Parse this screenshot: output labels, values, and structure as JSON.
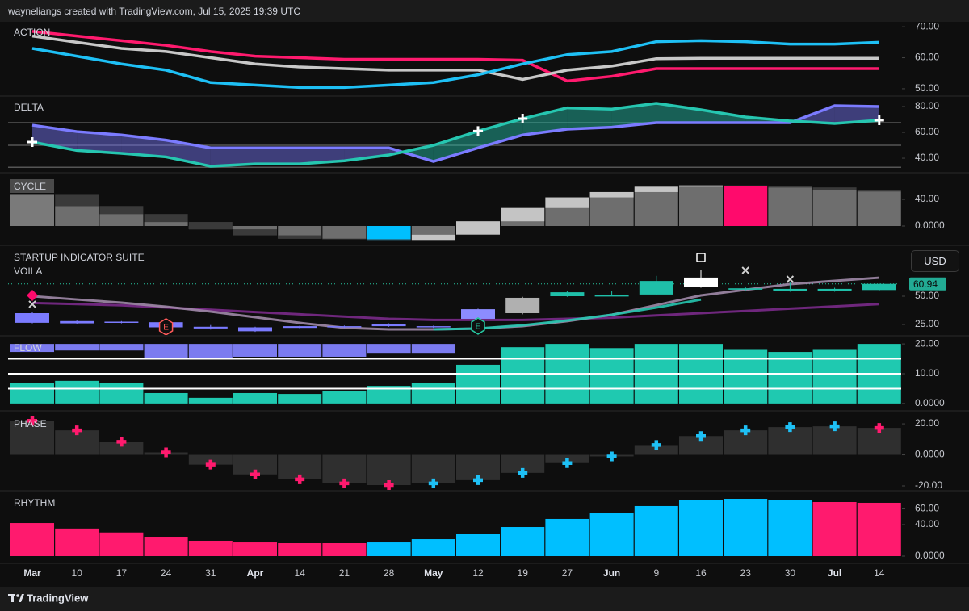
{
  "header": {
    "caption": "wayneliangs created with TradingView.com, Jul 15, 2025 19:39 UTC"
  },
  "footer": {
    "brand": "TradingView"
  },
  "chart_data": [
    {
      "type": "line",
      "title": "ACTION",
      "ylim": [
        47.9,
        71.6
      ],
      "yticks": [
        {
          "value": 70,
          "label": "70.00"
        },
        {
          "value": 60,
          "label": "60.00"
        },
        {
          "value": 50,
          "label": "50.00"
        }
      ],
      "series": [
        {
          "color": "#ff1a6e",
          "values": [
            68.5,
            67,
            65.5,
            64,
            62,
            60.5,
            60,
            59.5,
            59.5,
            59.5,
            59.5,
            59.2,
            52.5,
            54,
            56.5,
            56.5,
            56.5,
            56.5,
            56.5,
            56.5
          ]
        },
        {
          "color": "#c8c8c8",
          "values": [
            67,
            65,
            63,
            62,
            60,
            58,
            57,
            56.5,
            56,
            56,
            56,
            53,
            56,
            57.3,
            59.7,
            59.8,
            59.8,
            59.8,
            59.8,
            59.8
          ]
        },
        {
          "color": "#1ec0f5",
          "values": [
            63,
            60.5,
            58,
            56,
            52,
            51.2,
            50.4,
            50.4,
            51.2,
            52,
            54.5,
            58,
            61,
            62,
            65.2,
            65.5,
            65.2,
            64.4,
            64.4,
            65
          ]
        }
      ]
    },
    {
      "type": "line",
      "title": "DELTA",
      "ylim": [
        29.4,
        87.5
      ],
      "yticks": [
        {
          "value": 80,
          "label": "80.00"
        },
        {
          "value": 60,
          "label": "60.00"
        },
        {
          "value": 40,
          "label": "40.00"
        }
      ],
      "fill": true,
      "levels": [
        67.5,
        50,
        33
      ],
      "signals": [
        0,
        10,
        11,
        19
      ],
      "series": [
        {
          "color": "#7b7bff",
          "values": [
            65.6,
            60.6,
            58,
            54,
            48,
            48,
            48,
            48,
            48,
            37.5,
            48,
            58,
            62.5,
            64,
            67.5,
            67.5,
            67.5,
            67.5,
            80.6,
            80
          ]
        },
        {
          "color": "#26c6b0",
          "values": [
            52.5,
            46,
            43.8,
            41,
            33.8,
            35.6,
            35.6,
            38,
            42.5,
            50,
            61,
            70.6,
            79,
            78,
            82.5,
            77.5,
            71.9,
            68.8,
            66.9,
            69.4
          ]
        }
      ]
    },
    {
      "type": "bar",
      "title": "CYCLE",
      "ylim": [
        -27.9,
        75.2
      ],
      "yticks": [
        {
          "value": 40,
          "label": "40.00"
        },
        {
          "value": 0,
          "label": "0.0000"
        }
      ],
      "show_change": true,
      "series": [
        {
          "values": [
            48,
            30,
            18,
            6,
            -5,
            -14,
            -19,
            -20,
            -21,
            -13,
            7,
            27,
            43,
            51,
            59,
            61,
            60,
            58,
            54,
            52
          ],
          "colors": [
            "#7a7a7a",
            "#6e6e6e",
            "#6e6e6e",
            "#6e6e6e",
            "#6e6e6e",
            "#6e6e6e",
            "#6e6e6e",
            "#6e6e6e",
            "#00bfff",
            "#6e6e6e",
            "#6e6e6e",
            "#6e6e6e",
            "#6e6e6e",
            "#6e6e6e",
            "#6e6e6e",
            "#6e6e6e",
            "#ff0a6c",
            "#6e6e6e",
            "#6e6e6e",
            "#6e6e6e"
          ]
        }
      ]
    },
    {
      "type": "candlestick",
      "title": "STARTUP INDICATOR SUITE",
      "subtitle": "VOILA",
      "currency": "USD",
      "ylim": [
        15.7,
        93.6
      ],
      "yticks": [
        {
          "value": 50,
          "label": "50.00"
        },
        {
          "value": 25,
          "label": "25.00"
        }
      ],
      "lines": [
        {
          "color": "#7a2a8a",
          "values": [
            44,
            43,
            42,
            40,
            38,
            36,
            34,
            32,
            30,
            29,
            29,
            29,
            30,
            31,
            33,
            35,
            37,
            39,
            41,
            43
          ]
        },
        {
          "color": "#a08aa8",
          "values": [
            50,
            47.1,
            44.3,
            40.7,
            36.4,
            31.4,
            26.4,
            22.1,
            20.7,
            20.7,
            21.4,
            23.6,
            27.9,
            33.6,
            42.1,
            50.7,
            55.7,
            60.7,
            63.6,
            66.4
          ]
        },
        {
          "color": "#26c6b0",
          "values": [
            null,
            null,
            null,
            null,
            null,
            null,
            null,
            null,
            null,
            20.7,
            21.4,
            24.3,
            28.6,
            33.6,
            40,
            47,
            null,
            null,
            null,
            null
          ]
        }
      ],
      "candles": {
        "open": [
          35,
          28,
          27.5,
          27,
          23,
          22.5,
          23.5,
          23.5,
          25.5,
          22.5,
          30,
          35,
          50,
          50.5,
          51.5,
          58,
          55.8,
          54.5,
          54.5,
          55.5
        ],
        "high": [
          36,
          28.5,
          28,
          28,
          24.5,
          23,
          24,
          24,
          26,
          24,
          39,
          49.5,
          54.5,
          55,
          68,
          73,
          58,
          62,
          57.5,
          61.5
        ],
        "low": [
          26,
          25.5,
          26,
          21,
          20.5,
          18.5,
          21.5,
          22,
          23,
          22,
          29.5,
          34,
          49.5,
          50,
          51,
          57.5,
          55,
          54,
          54,
          55
        ],
        "close": [
          26.5,
          26,
          26.5,
          22.5,
          21.5,
          19,
          22,
          22.5,
          23.5,
          23.5,
          38.5,
          48.6,
          53.5,
          50.8,
          63.5,
          66.5,
          57,
          56.5,
          56.5,
          60.94
        ],
        "colors": [
          "#7b7bff",
          "#7b7bff",
          "#7b7bff",
          "#7b7bff",
          "#7b7bff",
          "#7b7bff",
          "#7b7bff",
          "#7b7bff",
          "#7b7bff",
          "#7b7bff",
          "#8c8cff",
          "#b0b0b0",
          "#1fbfa9",
          "#1fbfa9",
          "#1fbfa9",
          "#ffffff",
          "#1fbfa9",
          "#1fbfa9",
          "#1fbfa9",
          "#1fbfa9"
        ]
      },
      "markers": [
        {
          "index": 0,
          "value": 50.7,
          "shape": "diamond",
          "color": "#ff0a6c"
        },
        {
          "index": 0,
          "value": 42.9,
          "shape": "x",
          "color": "#d0d0d0"
        },
        {
          "index": 3,
          "value": 22.9,
          "shape": "hex",
          "label": "E",
          "color": "#ff5a5a"
        },
        {
          "index": 10,
          "value": 23.6,
          "shape": "hex",
          "label": "E",
          "color": "#26c6a0"
        },
        {
          "index": 15,
          "value": 84.3,
          "shape": "box",
          "color": "#ffffff"
        },
        {
          "index": 16,
          "value": 72.9,
          "shape": "x",
          "color": "#d0d0d0"
        },
        {
          "index": 17,
          "value": 65,
          "shape": "x",
          "color": "#d0d0d0"
        }
      ]
    },
    {
      "type": "bar",
      "title": "FLOW",
      "ylim": [
        -2.2,
        22.2
      ],
      "yticks": [
        {
          "value": 20,
          "label": "20.00"
        },
        {
          "value": 10,
          "label": "10.00"
        },
        {
          "value": 0,
          "label": "0.0000"
        }
      ],
      "levels": [
        15,
        10,
        5
      ],
      "series": [
        {
          "color": "#1fc9b0",
          "values": [
            6.8,
            7.6,
            7,
            3.5,
            1.9,
            3.5,
            3.2,
            4.3,
            5.9,
            7,
            13,
            18.9,
            20,
            18.6,
            20,
            20,
            18,
            17.3,
            18,
            20
          ]
        },
        {
          "color": "#7b7bf0",
          "hang_from": 20,
          "values": [
            2.7,
            2.2,
            2.2,
            4.6,
            5.1,
            4.3,
            4.3,
            4.3,
            3,
            3,
            null,
            null,
            null,
            null,
            null,
            null,
            null,
            null,
            null,
            null
          ]
        }
      ]
    },
    {
      "type": "bar",
      "title": "PHASE",
      "ylim": [
        -22.6,
        26.8
      ],
      "yticks": [
        {
          "value": 20,
          "label": "20.00"
        },
        {
          "value": 0,
          "label": "0.0000"
        },
        {
          "value": -20,
          "label": "-20.00"
        }
      ],
      "series": [
        {
          "color": "#2f2f2f",
          "values": [
            22,
            15.8,
            8.4,
            1.6,
            -6.3,
            -12.6,
            -15.8,
            -18.4,
            -19.5,
            -18.4,
            -16.3,
            -11.6,
            -5.3,
            -1,
            6.3,
            12.1,
            15.8,
            17.9,
            18.4,
            17.4
          ],
          "marker_colors": [
            "#ff1a6e",
            "#ff1a6e",
            "#ff1a6e",
            "#ff1a6e",
            "#ff1a6e",
            "#ff1a6e",
            "#ff1a6e",
            "#ff1a6e",
            "#ff1a6e",
            "#1ec0f5",
            "#1ec0f5",
            "#1ec0f5",
            "#1ec0f5",
            "#1ec0f5",
            "#1ec0f5",
            "#1ec0f5",
            "#1ec0f5",
            "#1ec0f5",
            "#1ec0f5",
            "#ff1a6e"
          ]
        }
      ]
    },
    {
      "type": "bar",
      "title": "RHYTHM",
      "ylim": [
        -8.2,
        81
      ],
      "yticks": [
        {
          "value": 60,
          "label": "60.00"
        },
        {
          "value": 40,
          "label": "40.00"
        },
        {
          "value": 0,
          "label": "0.0000"
        }
      ],
      "categories": [
        "Mar",
        "10",
        "17",
        "24",
        "31",
        "Apr",
        "14",
        "21",
        "28",
        "May",
        "12",
        "19",
        "27",
        "Jun",
        "9",
        "16",
        "23",
        "30",
        "Jul",
        "14"
      ],
      "series": [
        {
          "values": [
            42,
            35,
            30,
            24.6,
            19.5,
            17.4,
            16.4,
            16.4,
            17.4,
            21.5,
            27.7,
            36.9,
            47.2,
            54.4,
            63.6,
            70.8,
            72.8,
            70.8,
            68.7,
            67.7
          ],
          "colors": [
            "#ff1a6e",
            "#ff1a6e",
            "#ff1a6e",
            "#ff1a6e",
            "#ff1a6e",
            "#ff1a6e",
            "#ff1a6e",
            "#ff1a6e",
            "#00bfff",
            "#00bfff",
            "#00bfff",
            "#00bfff",
            "#00bfff",
            "#00bfff",
            "#00bfff",
            "#00bfff",
            "#00bfff",
            "#00bfff",
            "#ff1a6e",
            "#ff1a6e"
          ]
        }
      ]
    }
  ]
}
